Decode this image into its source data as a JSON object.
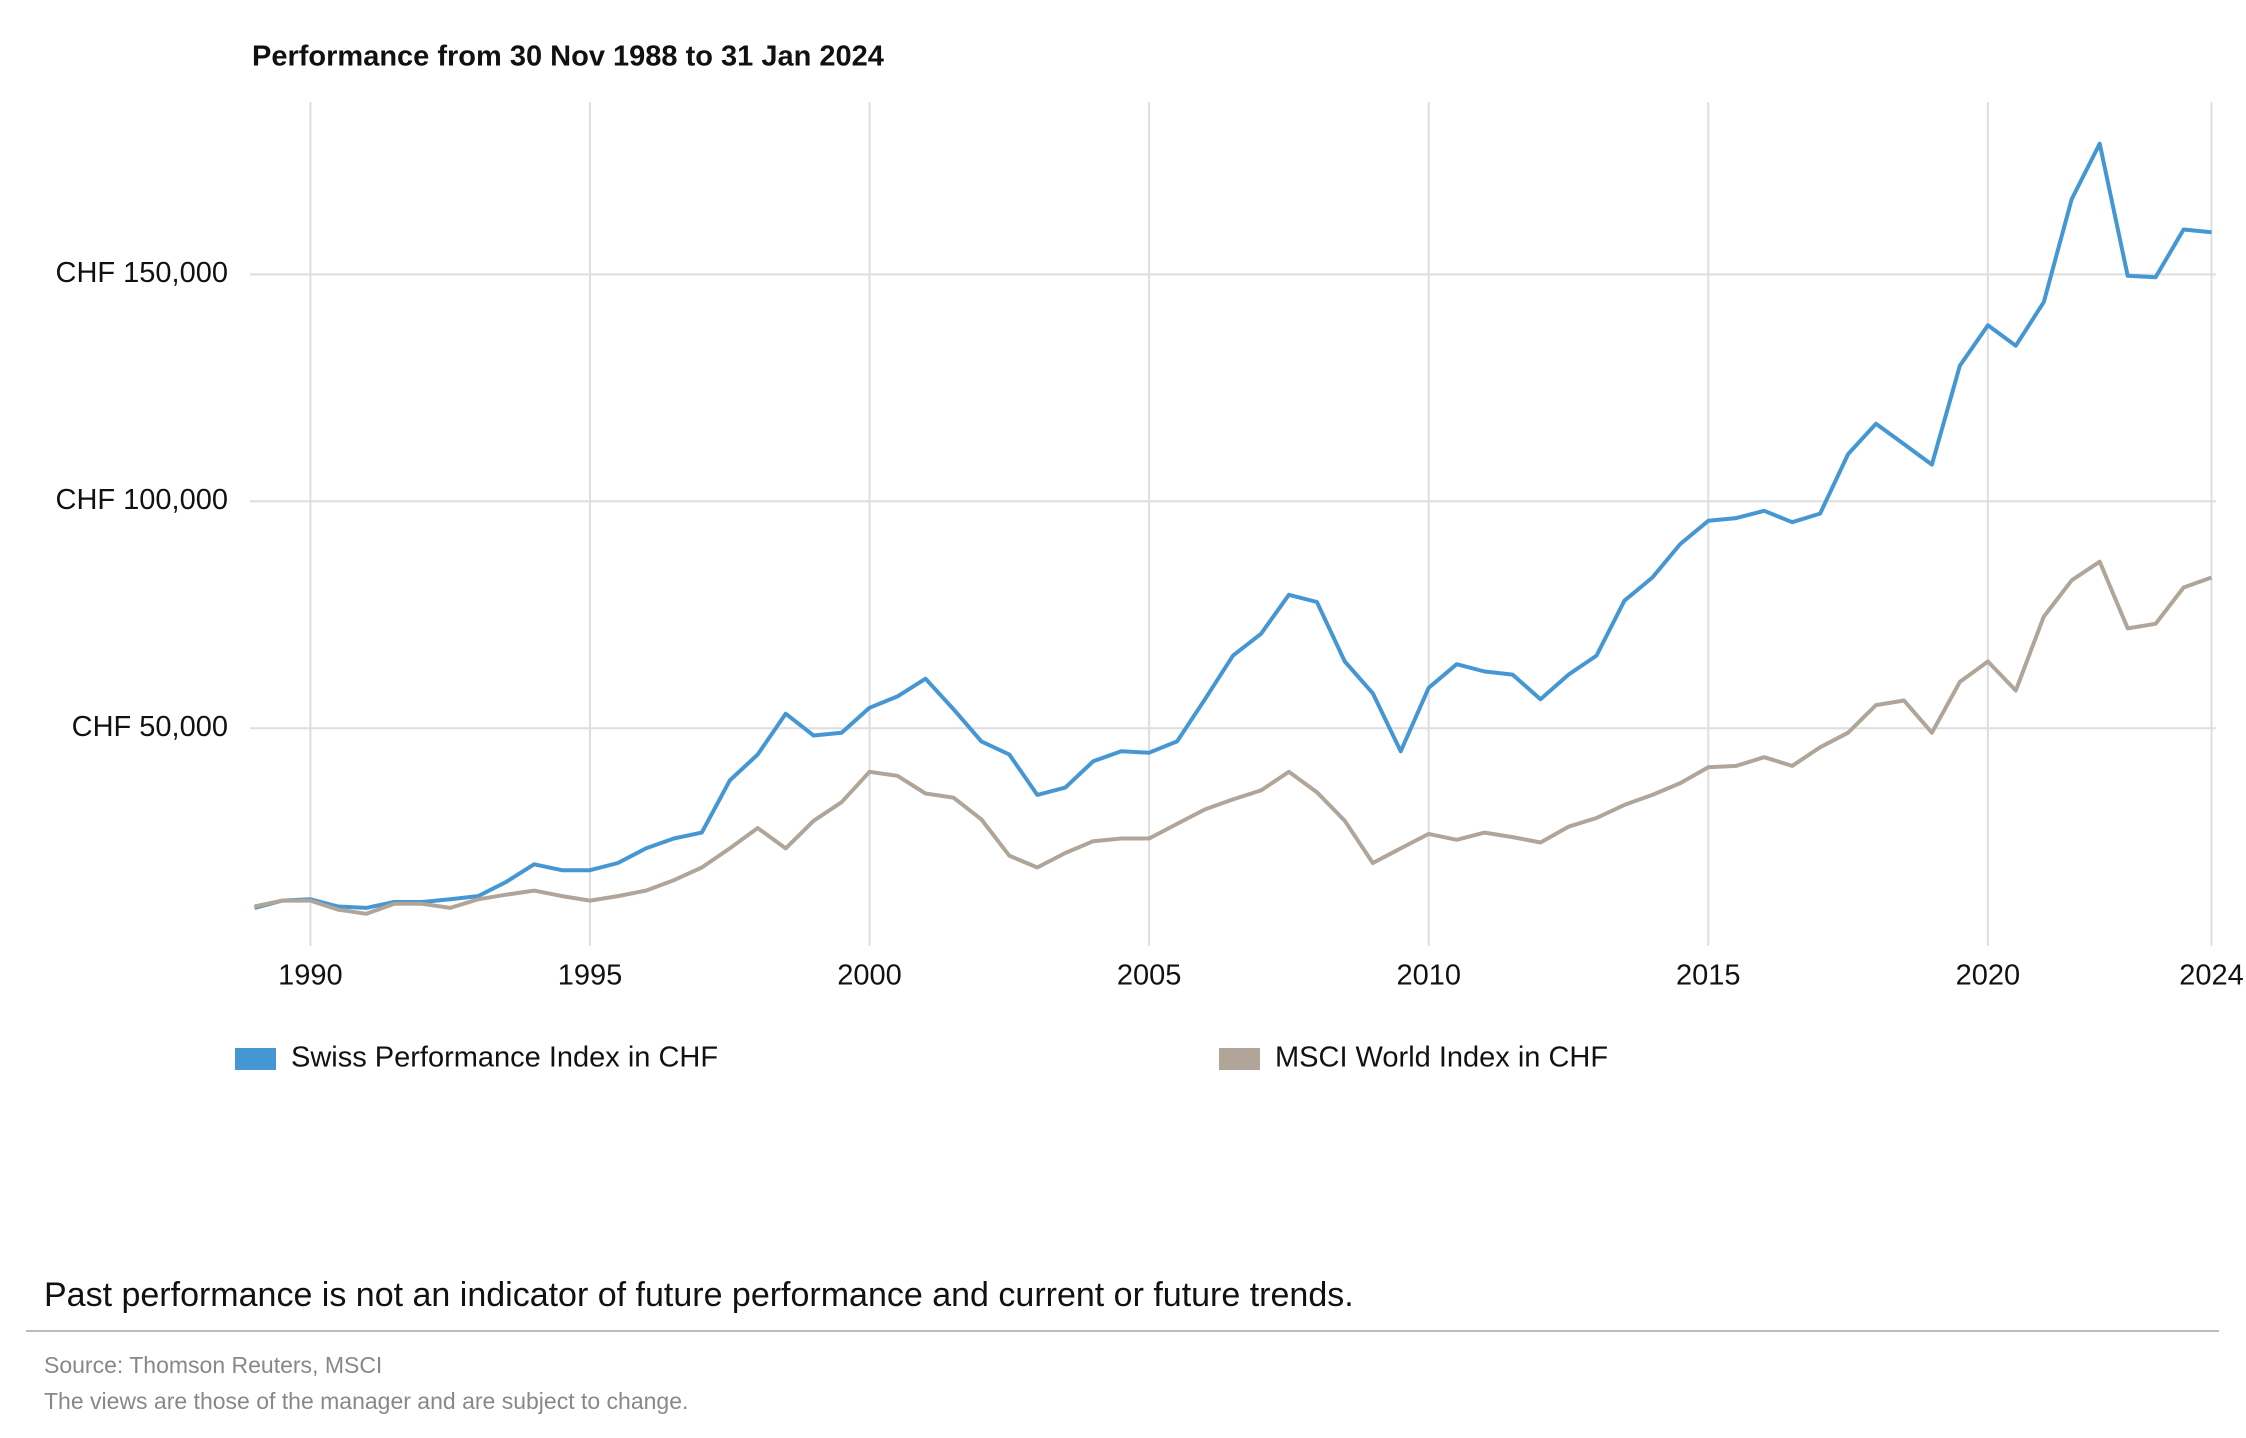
{
  "chart_data": {
    "type": "line",
    "title": "Performance from 30 Nov 1988 to 31 Jan 2024",
    "x": [
      1989.0,
      1989.5,
      1990.0,
      1990.5,
      1991.0,
      1991.5,
      1992.0,
      1992.5,
      1993.0,
      1993.5,
      1994.0,
      1994.5,
      1995.0,
      1995.5,
      1996.0,
      1996.5,
      1997.0,
      1997.5,
      1998.0,
      1998.5,
      1999.0,
      1999.5,
      2000.0,
      2000.5,
      2001.0,
      2001.5,
      2002.0,
      2002.5,
      2003.0,
      2003.5,
      2004.0,
      2004.5,
      2005.0,
      2005.5,
      2006.0,
      2006.5,
      2007.0,
      2007.5,
      2008.0,
      2008.5,
      2009.0,
      2009.5,
      2010.0,
      2010.5,
      2011.0,
      2011.5,
      2012.0,
      2012.5,
      2013.0,
      2013.5,
      2014.0,
      2014.5,
      2015.0,
      2015.5,
      2016.0,
      2016.5,
      2017.0,
      2017.5,
      2018.0,
      2018.5,
      2019.0,
      2019.5,
      2020.0,
      2020.5,
      2021.0,
      2021.5,
      2022.0,
      2022.5,
      2023.0,
      2023.5,
      2024.0
    ],
    "series": [
      {
        "name": "Swiss Performance Index in CHF",
        "color": "#4597d4",
        "values": [
          10400,
          12000,
          12300,
          10700,
          10400,
          11700,
          11700,
          12300,
          13000,
          16100,
          20000,
          18700,
          18700,
          20300,
          23500,
          25700,
          27000,
          38500,
          44200,
          53200,
          48400,
          49000,
          54500,
          57000,
          60900,
          54200,
          47100,
          44200,
          35300,
          36900,
          42700,
          44900,
          44600,
          47100,
          56400,
          66000,
          70800,
          79400,
          77800,
          64700,
          57700,
          44900,
          58900,
          64100,
          62500,
          61800,
          56400,
          61800,
          66000,
          78100,
          83200,
          90600,
          95700,
          96300,
          97900,
          95400,
          97300,
          110400,
          117100,
          112600,
          108100,
          129900,
          138800,
          134300,
          143900,
          166600,
          178800,
          149700,
          149400,
          159900,
          159300
        ]
      },
      {
        "name": "MSCI World Index in CHF",
        "color": "#b0a598",
        "values": [
          10700,
          12000,
          12000,
          10000,
          9100,
          11300,
          11300,
          10400,
          12300,
          13300,
          14200,
          13000,
          12000,
          13000,
          14200,
          16500,
          19300,
          23500,
          28000,
          23500,
          29600,
          33700,
          40400,
          39500,
          35600,
          34700,
          29900,
          21900,
          19300,
          22500,
          25100,
          25700,
          25700,
          28900,
          32100,
          34300,
          36300,
          40400,
          35900,
          29600,
          20300,
          23500,
          26700,
          25400,
          27000,
          26000,
          24800,
          28300,
          30200,
          33100,
          35300,
          37900,
          41400,
          41700,
          43600,
          41700,
          45800,
          49000,
          55100,
          56100,
          49000,
          60200,
          64700,
          58300,
          74600,
          82600,
          86700,
          72000,
          73000,
          81000,
          83200
        ]
      }
    ],
    "xlim": [
      1988.92,
      2024.08
    ],
    "xticks": [
      1990,
      1995,
      2000,
      2005,
      2010,
      2015,
      2020,
      2024
    ],
    "ylim": [
      2000,
      188000
    ],
    "yticks": [
      {
        "value": 50000,
        "label": "CHF 50,000"
      },
      {
        "value": 100000,
        "label": "CHF 100,000"
      },
      {
        "value": 150000,
        "label": "CHF 150,000"
      }
    ],
    "grid": true,
    "legend": "bottom",
    "disclaimer": "Past performance is not an indicator of future performance and current or future trends.",
    "source": "Source: Thomson Reuters, MSCI",
    "note": "The views are those of the manager and are subject to change."
  }
}
